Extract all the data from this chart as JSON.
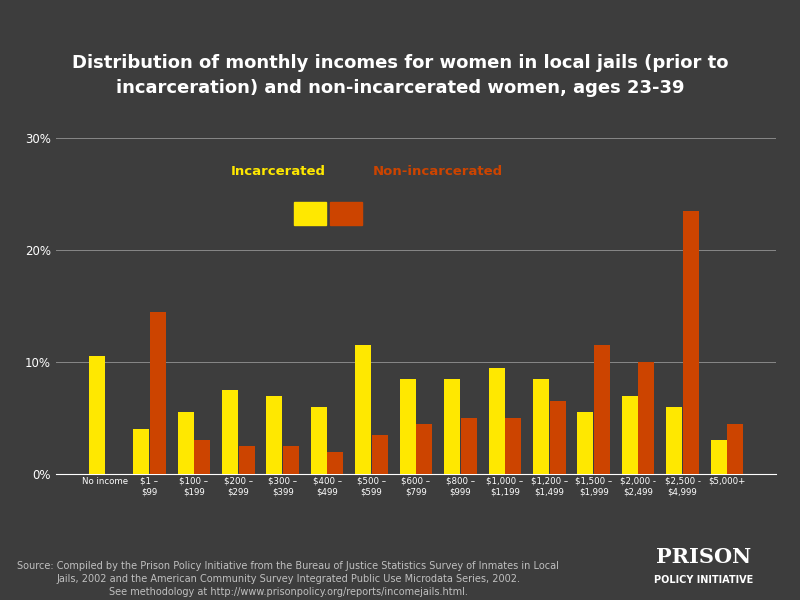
{
  "title_line1": "Distribution of monthly incomes for women in local jails (prior to",
  "title_line2": "incarceration) and non-incarcerated women, ages 23-39",
  "categories": [
    "No income",
    "$1 –\n$99",
    "$100 –\n$199",
    "$200 –\n$299",
    "$300 –\n$399",
    "$400 –\n$499",
    "$500 –\n$599",
    "$600 –\n$799",
    "$800 –\n$999",
    "$1,000 –\n$1,199",
    "$1,200 –\n$1,499",
    "$1,500 –\n$1,999",
    "$2,000 -\n$2,499",
    "$2,500 -\n$4,999",
    "$5,000+"
  ],
  "incarcerated": [
    10.5,
    4.0,
    5.5,
    7.5,
    7.0,
    6.0,
    11.5,
    8.5,
    8.5,
    9.5,
    8.5,
    5.5,
    7.0,
    6.0,
    3.0
  ],
  "non_incarcerated": [
    0.0,
    14.5,
    3.0,
    2.5,
    2.5,
    2.0,
    3.5,
    4.5,
    5.0,
    5.0,
    6.5,
    11.5,
    10.0,
    23.5,
    4.5
  ],
  "incarcerated_color": "#FFE800",
  "non_incarcerated_color": "#CC4400",
  "background_color": "#3d3d3d",
  "text_color": "#ffffff",
  "grid_color": "#888888",
  "ylim": [
    0,
    30
  ],
  "yticks": [
    0,
    10,
    20,
    30
  ],
  "ytick_labels": [
    "0%",
    "10%",
    "20%",
    "30%"
  ],
  "legend_incarcerated_label": "Incarcerated",
  "legend_non_incarcerated_label": "Non-incarcerated",
  "source_text": "Source: Compiled by the Prison Policy Initiative from the Bureau of Justice Statistics Survey of Inmates in Local\nJails, 2002 and the American Community Survey Integrated Public Use Microdata Series, 2002.\nSee methodology at http://www.prisonpolicy.org/reports/incomejails.html.",
  "logo_line1": "PRISON",
  "logo_line2": "POLICY INITIATIVE",
  "title_fontsize": 13,
  "tick_fontsize": 8.5,
  "source_fontsize": 7.0,
  "legend_fontsize": 9.5
}
